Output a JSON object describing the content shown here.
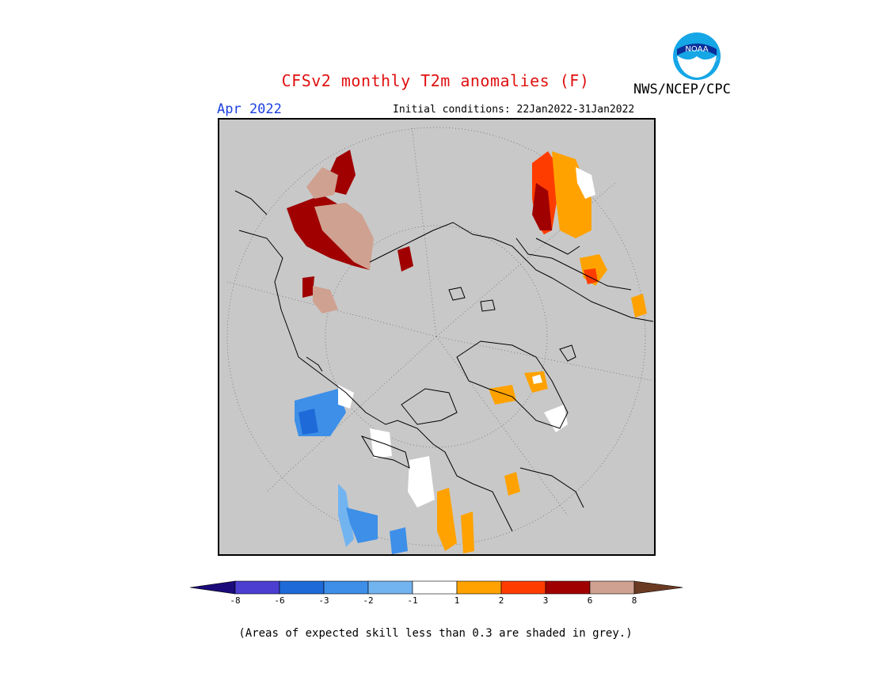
{
  "header": {
    "title": "CFSv2 monthly T2m anomalies (F)",
    "month": "Apr 2022",
    "initial_conditions": "Initial conditions: 22Jan2022-31Jan2022",
    "agency": "NWS/NCEP/CPC",
    "logo_text": "NOAA"
  },
  "legend": {
    "ticks": [
      "-8",
      "-6",
      "-3",
      "-2",
      "-1",
      "1",
      "2",
      "3",
      "6",
      "8"
    ],
    "colors": {
      "lt_-8": "#1a0a7a",
      "-8_-6": "#4b3ed0",
      "-6_-3": "#1e6ad8",
      "-3_-2": "#3d8fe8",
      "-2_-1": "#72b4f0",
      "-1_1": "#ffffff",
      "1_2": "#ffa200",
      "2_3": "#ff3c00",
      "3_6": "#a00000",
      "6_8": "#cfa190",
      "gt_8": "#6b3a22"
    },
    "no_skill_color": "#c8c8c8"
  },
  "footnote": "(Areas of expected skill less than 0.3 are shaded in grey.)"
}
